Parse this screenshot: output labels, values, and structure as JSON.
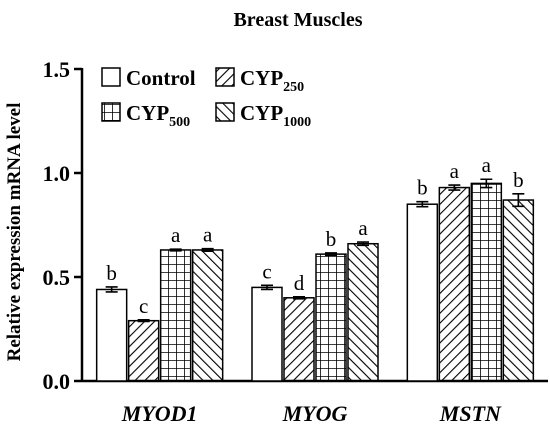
{
  "chart_data": {
    "type": "bar",
    "title": "Breast Muscles",
    "xlabel": "",
    "ylabel": "Relative expression mRNA level",
    "ylim": [
      0,
      1.5
    ],
    "yticks": [
      "0.0",
      "0.5",
      "1.0",
      "1.5"
    ],
    "categories": [
      "MYOD1",
      "MYOG",
      "MSTN"
    ],
    "series": [
      {
        "name": "Control",
        "name_base": "Control",
        "name_sub": "",
        "pattern": "none",
        "values": [
          0.44,
          0.45,
          0.85
        ],
        "errors": [
          0.012,
          0.01,
          0.012
        ],
        "letters": [
          "b",
          "c",
          "b"
        ]
      },
      {
        "name": "CYP250",
        "name_base": "CYP",
        "name_sub": "250",
        "pattern": "diag-up",
        "values": [
          0.29,
          0.4,
          0.93
        ],
        "errors": [
          0.004,
          0.005,
          0.012
        ],
        "letters": [
          "c",
          "d",
          "a"
        ]
      },
      {
        "name": "CYP500",
        "name_base": "CYP",
        "name_sub": "500",
        "pattern": "grid",
        "values": [
          0.63,
          0.61,
          0.95
        ],
        "errors": [
          0.004,
          0.006,
          0.02
        ],
        "letters": [
          "a",
          "b",
          "a"
        ]
      },
      {
        "name": "CYP1000",
        "name_base": "CYP",
        "name_sub": "1000",
        "pattern": "diag-down",
        "values": [
          0.63,
          0.66,
          0.87
        ],
        "errors": [
          0.006,
          0.008,
          0.03
        ],
        "letters": [
          "a",
          "a",
          "b"
        ]
      }
    ],
    "legend_position": "top-left",
    "grid": false
  }
}
